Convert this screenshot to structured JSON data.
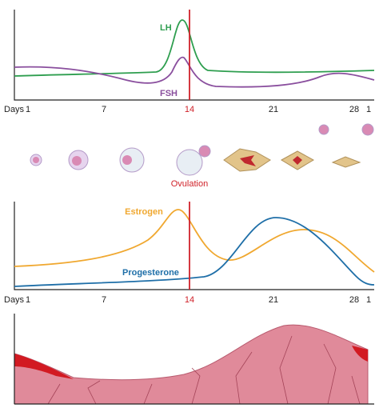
{
  "hormone_chart": {
    "lh_label": "LH",
    "fsh_label": "FSH"
  },
  "day_axis_top": {
    "label": "Days",
    "ticks": [
      "1",
      "7",
      "14",
      "21",
      "28",
      "1"
    ]
  },
  "ovary": {
    "label": "Ovulation"
  },
  "ovarian_chart": {
    "estrogen_label": "Estrogen",
    "progesterone_label": "Progesterone"
  },
  "day_axis_bottom": {
    "label": "Days",
    "ticks": [
      "1",
      "7",
      "14",
      "21",
      "28",
      "1"
    ]
  }
}
